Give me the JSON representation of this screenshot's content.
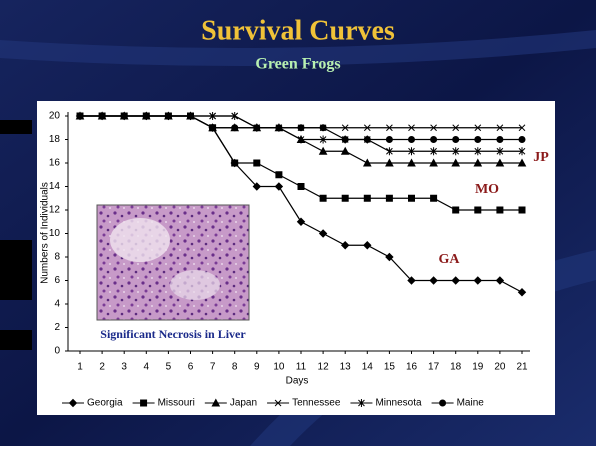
{
  "chart_data": {
    "type": "line",
    "title": "Survival Curves",
    "subtitle": "Green Frogs",
    "caption": "Significant Necrosis in Liver",
    "y_label": "Numbers of Individuals",
    "x_label": "Days",
    "categories": [
      "1",
      "2",
      "3",
      "4",
      "5",
      "6",
      "7",
      "8",
      "9",
      "10",
      "11",
      "12",
      "13",
      "14",
      "15",
      "16",
      "17",
      "18",
      "19",
      "20",
      "21"
    ],
    "ylim": [
      0,
      20
    ],
    "yticks": [
      0,
      2,
      4,
      6,
      8,
      10,
      12,
      14,
      16,
      18,
      20
    ],
    "annotations": [
      "JP",
      "MO",
      "GA"
    ],
    "series": [
      {
        "name": "Georgia",
        "color": "#000000",
        "marker": "diamond",
        "values": [
          20,
          20,
          20,
          20,
          20,
          20,
          19,
          16,
          14,
          14,
          11,
          10,
          9,
          9,
          8,
          6,
          6,
          6,
          6,
          6,
          5
        ]
      },
      {
        "name": "Missouri",
        "color": "#000000",
        "marker": "square",
        "values": [
          20,
          20,
          20,
          20,
          20,
          20,
          19,
          16,
          16,
          15,
          14,
          13,
          13,
          13,
          13,
          13,
          13,
          12,
          12,
          12,
          12
        ]
      },
      {
        "name": "Japan",
        "color": "#000000",
        "marker": "triangle",
        "values": [
          20,
          20,
          20,
          20,
          20,
          20,
          19,
          19,
          19,
          19,
          18,
          17,
          17,
          16,
          16,
          16,
          16,
          16,
          16,
          16,
          16
        ]
      },
      {
        "name": "Tennessee",
        "color": "#000000",
        "marker": "x",
        "values": [
          20,
          20,
          20,
          20,
          20,
          20,
          20,
          20,
          19,
          19,
          19,
          19,
          19,
          19,
          19,
          19,
          19,
          19,
          19,
          19,
          19
        ]
      },
      {
        "name": "Minnesota",
        "color": "#000000",
        "marker": "star",
        "values": [
          20,
          20,
          20,
          20,
          20,
          20,
          20,
          20,
          19,
          19,
          18,
          18,
          18,
          18,
          17,
          17,
          17,
          17,
          17,
          17,
          17
        ]
      },
      {
        "name": "Maine",
        "color": "#000000",
        "marker": "circle",
        "values": [
          20,
          20,
          20,
          20,
          20,
          20,
          19,
          19,
          19,
          19,
          19,
          19,
          18,
          18,
          18,
          18,
          18,
          18,
          18,
          18,
          18
        ]
      }
    ]
  }
}
